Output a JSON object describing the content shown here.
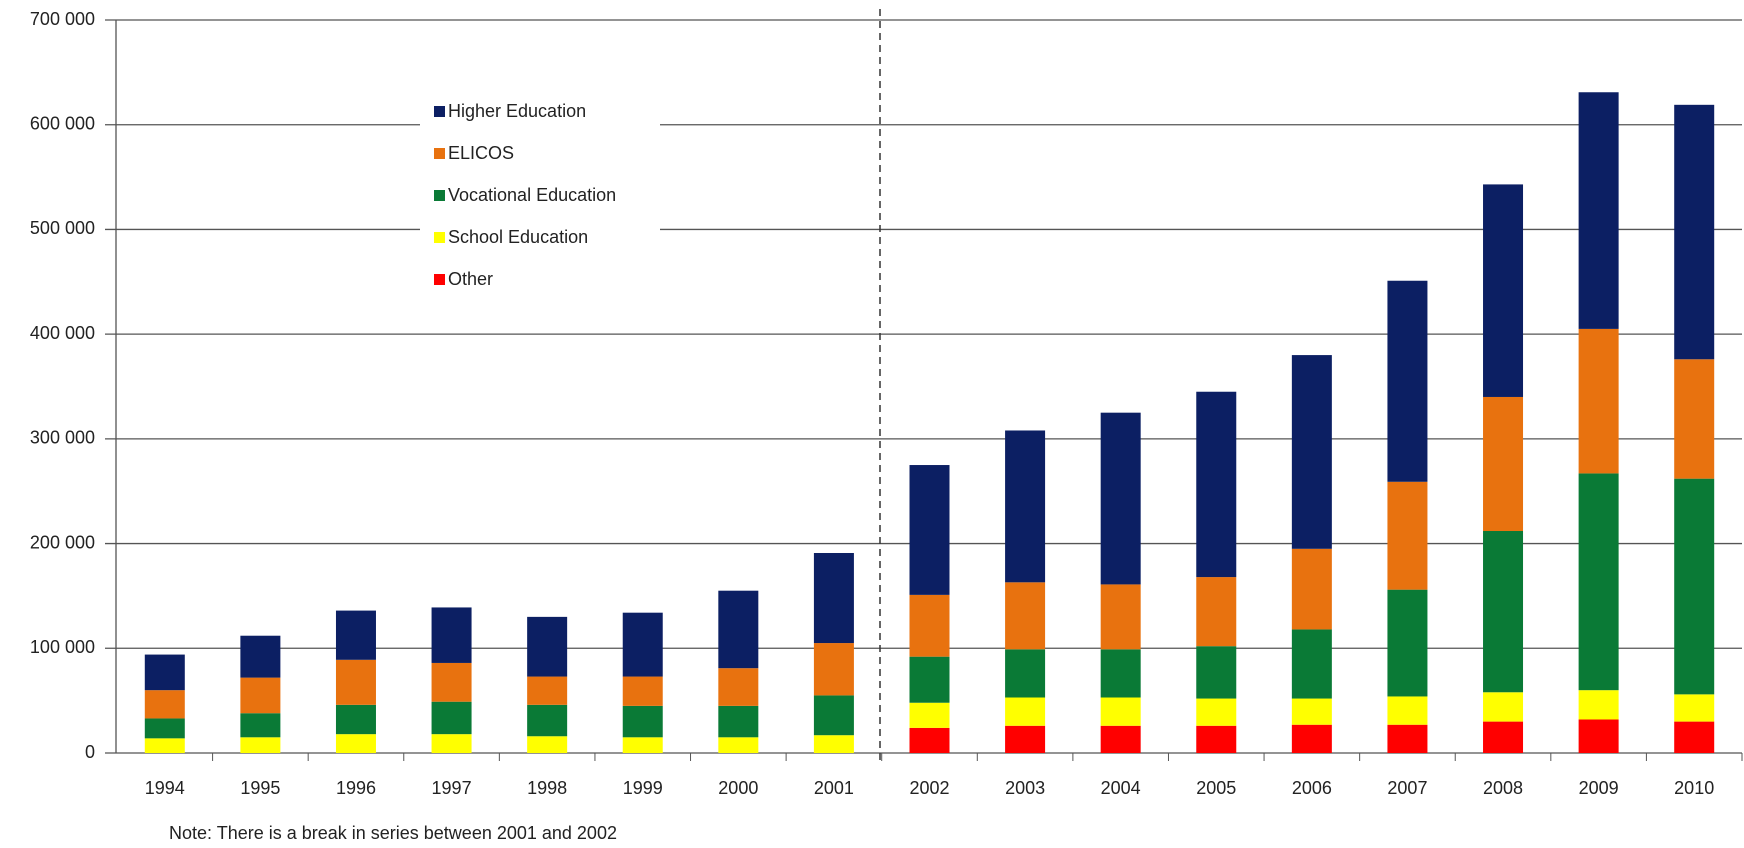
{
  "chart_data": {
    "type": "stacked_bar",
    "categories": [
      "1994",
      "1995",
      "1996",
      "1997",
      "1998",
      "1999",
      "2000",
      "2001",
      "2002",
      "2003",
      "2004",
      "2005",
      "2006",
      "2007",
      "2008",
      "2009",
      "2010"
    ],
    "series": [
      {
        "name": "Other",
        "color": "#ff0000",
        "values": [
          0,
          0,
          0,
          0,
          0,
          0,
          0,
          0,
          24000,
          26000,
          26000,
          26000,
          27000,
          27000,
          30000,
          32000,
          30000
        ]
      },
      {
        "name": "School Education",
        "color": "#ffff00",
        "values": [
          14000,
          15000,
          18000,
          18000,
          16000,
          15000,
          15000,
          17000,
          24000,
          27000,
          27000,
          26000,
          25000,
          27000,
          28000,
          28000,
          26000
        ]
      },
      {
        "name": "Vocational Education",
        "color": "#0a7a36",
        "values": [
          19000,
          23000,
          28000,
          31000,
          30000,
          30000,
          30000,
          38000,
          44000,
          46000,
          46000,
          50000,
          66000,
          102000,
          154000,
          207000,
          206000
        ]
      },
      {
        "name": "ELICOS",
        "color": "#e8720f",
        "values": [
          27000,
          34000,
          43000,
          37000,
          27000,
          28000,
          36000,
          50000,
          59000,
          64000,
          62000,
          66000,
          77000,
          103000,
          128000,
          138000,
          114000
        ]
      },
      {
        "name": "Higher Education",
        "color": "#0c1f63",
        "values": [
          34000,
          40000,
          47000,
          53000,
          57000,
          61000,
          74000,
          86000,
          124000,
          145000,
          164000,
          177000,
          185000,
          192000,
          203000,
          226000,
          243000
        ]
      }
    ],
    "ylim": [
      0,
      700000
    ],
    "yticks": [
      0,
      {
        "value": 100000,
        "label": "100 000"
      },
      {
        "value": 200000,
        "label": "200 000"
      },
      {
        "value": 300000,
        "label": "300 000"
      },
      {
        "value": 400000,
        "label": "400 000"
      },
      {
        "value": 500000,
        "label": "500 000"
      },
      {
        "value": 600000,
        "label": "600 000"
      },
      {
        "value": 700000,
        "label": "700 000"
      }
    ],
    "grid": true,
    "legend": "upper-left",
    "annotation": "Note: There is a break in series between 2001 and 2002"
  }
}
